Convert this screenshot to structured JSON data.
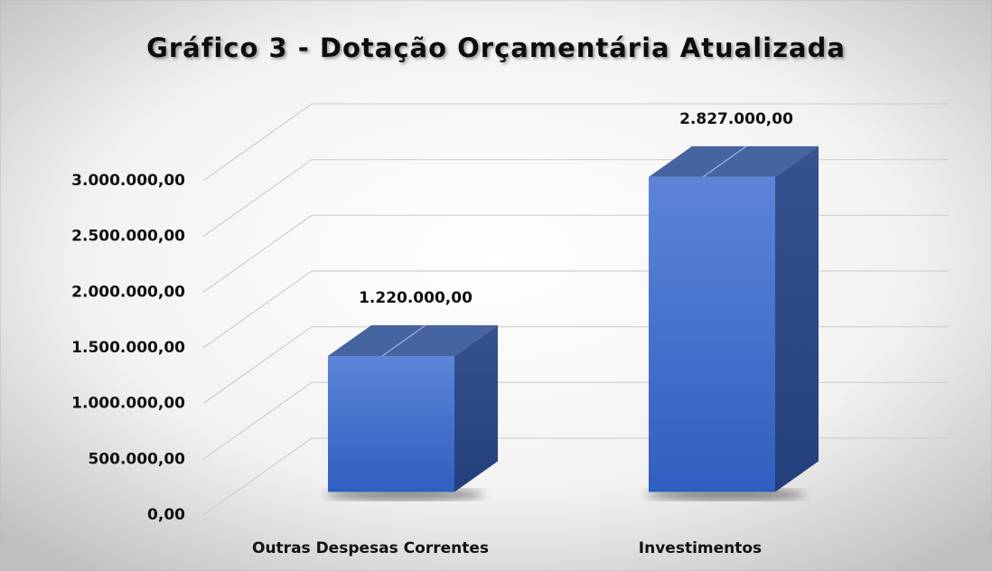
{
  "chart_data": {
    "type": "bar3d",
    "title": "Gráfico 3 - Dotação Orçamentária Atualizada",
    "categories": [
      "Outras Despesas Correntes",
      "Investimentos"
    ],
    "values": [
      1220000,
      2827000
    ],
    "value_labels": [
      "1.220.000,00",
      "2.827.000,00"
    ],
    "color": "#4472c4",
    "ylim": [
      0,
      3000000
    ],
    "yticks": [
      {
        "value": 0,
        "label": "0,00"
      },
      {
        "value": 500000,
        "label": "500.000,00"
      },
      {
        "value": 1000000,
        "label": "1.000.000,00"
      },
      {
        "value": 1500000,
        "label": "1.500.000,00"
      },
      {
        "value": 2000000,
        "label": "2.000.000,00"
      },
      {
        "value": 2500000,
        "label": "2.500.000,00"
      },
      {
        "value": 3000000,
        "label": "3.000.000,00"
      }
    ],
    "grid": true
  }
}
